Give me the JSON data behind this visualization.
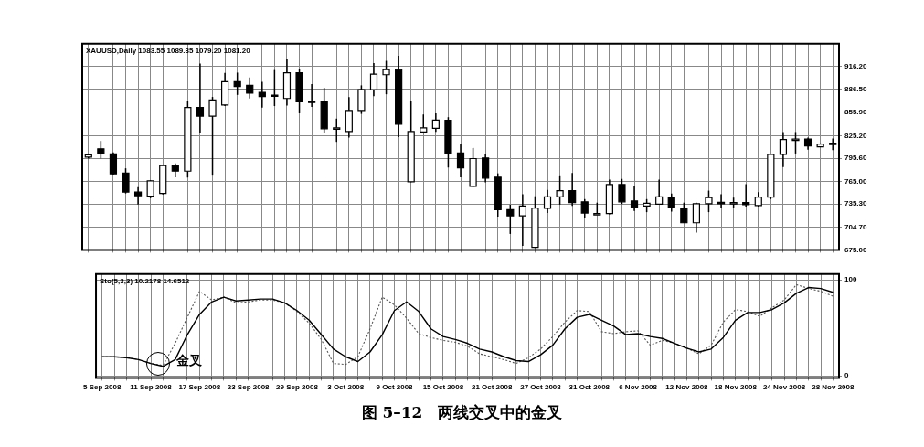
{
  "chart_data": [
    {
      "type": "candlestick",
      "title": "XAUUSD,Daily 1083.55 1089.35 1079.20 1081.20",
      "color": "#000000",
      "categories": [
        null,
        null,
        null,
        null,
        null,
        null,
        null,
        null,
        null,
        null,
        null,
        null,
        null,
        null,
        null,
        null,
        null,
        null,
        null,
        null,
        null,
        null,
        null,
        null,
        null,
        null,
        null,
        null,
        null,
        null,
        null,
        null,
        null,
        null,
        null,
        null,
        null,
        null,
        null,
        null,
        null,
        null,
        null,
        null,
        null,
        null,
        null,
        null,
        null,
        null,
        null,
        null,
        null,
        null,
        null,
        null,
        null,
        null,
        null,
        null,
        null
      ],
      "ohlc": [
        [
          797,
          801,
          795,
          800
        ],
        [
          807.9,
          818.2,
          795.1,
          801.3
        ],
        [
          801.3,
          803,
          774,
          774.9
        ],
        [
          776,
          782.2,
          749.2,
          751
        ],
        [
          751,
          757.6,
          734.5,
          746.2
        ],
        [
          745.5,
          766.5,
          743,
          765.7
        ],
        [
          749.2,
          787,
          748,
          785.9
        ],
        [
          785.9,
          788.8,
          770.5,
          778.5
        ],
        [
          778.5,
          870.3,
          770.1,
          862.2
        ],
        [
          862.2,
          919.8,
          828.8,
          850.8
        ],
        [
          850.8,
          876,
          773.8,
          872.1
        ],
        [
          865.5,
          907.7,
          864,
          896
        ],
        [
          896,
          908,
          878.7,
          889.8
        ],
        [
          891.2,
          901.5,
          874,
          880.9
        ],
        [
          882,
          896,
          861.9,
          876.5
        ],
        [
          878.5,
          911.4,
          864,
          877.5
        ],
        [
          874,
          925.3,
          864.8,
          907.7
        ],
        [
          907.7,
          913.2,
          854.5,
          869.6
        ],
        [
          870.5,
          893,
          863,
          869.5
        ],
        [
          870.3,
          887.9,
          828.1,
          834.3
        ],
        [
          835,
          847.5,
          817,
          835.5
        ],
        [
          830.7,
          875.8,
          822.6,
          858.2
        ],
        [
          858.2,
          891.2,
          853.8,
          885.7
        ],
        [
          885.7,
          920.6,
          876.9,
          905.9
        ],
        [
          905.2,
          923.5,
          879.5,
          911.8
        ],
        [
          911.8,
          930.1,
          823.3,
          840.2
        ],
        [
          764.6,
          870.3,
          764,
          830.7
        ],
        [
          829.9,
          853,
          829,
          835.4
        ],
        [
          834.7,
          854.5,
          830,
          845.7
        ],
        [
          845.3,
          849.4,
          783.3,
          801.7
        ],
        [
          802.4,
          814.1,
          770.5,
          782.9
        ],
        [
          758.4,
          809,
          757.7,
          795
        ],
        [
          795.8,
          801.3,
          763.9,
          769.4
        ],
        [
          770.5,
          775.6,
          718.7,
          727.9
        ],
        [
          727.9,
          734.5,
          696,
          719.8
        ],
        [
          719.8,
          748.1,
          680.2,
          732.7
        ],
        [
          678.4,
          745.5,
          677.6,
          730.1
        ],
        [
          729.7,
          753.9,
          723.5,
          744.8
        ],
        [
          744.8,
          773,
          734.5,
          752.9
        ],
        [
          752.9,
          776,
          732.7,
          737.1
        ],
        [
          738.2,
          741.8,
          716.9,
          723.5
        ],
        [
          722.8,
          737.1,
          722,
          722.8
        ],
        [
          722.8,
          767.5,
          721.7,
          760.9
        ],
        [
          760.9,
          768.3,
          735.2,
          738.2
        ],
        [
          739.3,
          759.1,
          726.1,
          730.8
        ],
        [
          732.7,
          741.8,
          724.6,
          736.3
        ],
        [
          735.2,
          767.5,
          735.2,
          744.8
        ],
        [
          744.4,
          749.2,
          725.3,
          730.8
        ],
        [
          730.1,
          737.1,
          710.6,
          710.6
        ],
        [
          710.6,
          737.1,
          697.8,
          735.6
        ],
        [
          735.6,
          752.9,
          724.6,
          743.7
        ],
        [
          737.5,
          748.1,
          729.7,
          737.1
        ],
        [
          737.1,
          743.7,
          730.8,
          737.3
        ],
        [
          737.1,
          761.3,
          731.9,
          734.5
        ],
        [
          733.4,
          751,
          731.9,
          744.4
        ],
        [
          744.4,
          800.6,
          741.8,
          800.6
        ],
        [
          800.6,
          829.9,
          784,
          820
        ],
        [
          820.5,
          829.9,
          801.7,
          820.7
        ],
        [
          820.7,
          822.6,
          806.8,
          811.6
        ],
        [
          810.5,
          815,
          810,
          814.1
        ],
        [
          815,
          821.5,
          806,
          815.2
        ]
      ],
      "ylim": [
        675,
        946
      ],
      "yticks": [
        {
          "value": 675,
          "label": "675.00"
        },
        {
          "value": 704.7,
          "label": "704.70"
        },
        {
          "value": 735.3,
          "label": "735.30"
        },
        {
          "value": 765,
          "label": "765.00"
        },
        {
          "value": 795.6,
          "label": "795.60"
        },
        {
          "value": 825.2,
          "label": "825.20"
        },
        {
          "value": 855.9,
          "label": "855.90"
        },
        {
          "value": 886.5,
          "label": "886.50"
        },
        {
          "value": 916.2,
          "label": "916.20"
        }
      ],
      "grid": true
    },
    {
      "type": "line",
      "title": "Sto(5,3,3) 10.2178 14.6512",
      "categories": [
        "5 Sep 2008",
        null,
        null,
        null,
        "11 Sep 2008",
        null,
        null,
        null,
        "17 Sep 2008",
        null,
        null,
        null,
        "23 Sep 2008",
        null,
        null,
        null,
        "29 Sep 2008",
        null,
        null,
        null,
        "3 Oct 2008",
        null,
        null,
        null,
        "9 Oct 2008",
        null,
        null,
        null,
        "15 Oct 2008",
        null,
        null,
        null,
        "21 Oct 2008",
        null,
        null,
        null,
        "27 Oct 2008",
        null,
        null,
        null,
        "31 Oct 2008",
        null,
        null,
        null,
        "6 Nov 2008",
        null,
        null,
        null,
        "12 Nov 2008",
        null,
        null,
        null,
        "18 Nov 2008",
        null,
        null,
        null,
        "24 Nov 2008",
        null,
        null,
        null,
        "28 Nov 2008"
      ],
      "series": [
        {
          "color": "#000000",
          "line_style": "solid",
          "values": [
            20,
            20,
            19,
            17,
            13,
            10,
            17,
            43,
            64,
            77,
            82,
            78,
            79,
            80,
            80,
            76,
            68,
            58,
            43,
            28,
            20,
            15,
            25,
            43,
            68,
            77,
            67,
            49,
            41,
            38,
            34,
            28,
            25,
            20,
            16,
            15,
            22,
            32,
            49,
            61,
            64,
            58,
            52,
            43,
            44,
            41,
            39,
            34,
            29,
            25,
            28,
            40,
            58,
            66,
            66,
            69,
            76,
            86,
            92,
            91,
            87
          ]
        },
        {
          "color": "#555555",
          "line_style": "dotted",
          "values": [
            20,
            20,
            19,
            17,
            13,
            11,
            34,
            61,
            88,
            79,
            82,
            76,
            77,
            79,
            79,
            76,
            67,
            55,
            38,
            13,
            12,
            20,
            49,
            82,
            74,
            60,
            44,
            40,
            37,
            35,
            31,
            23,
            20,
            17,
            13,
            19,
            28,
            41,
            56,
            68,
            67,
            46,
            44,
            46,
            47,
            32,
            37,
            34,
            29,
            23,
            32,
            56,
            69,
            67,
            62,
            71,
            79,
            95,
            91,
            88,
            83
          ]
        }
      ],
      "ylim": [
        -2,
        106
      ],
      "yticks": [
        0,
        100
      ],
      "grid": true,
      "marker": "none",
      "annotations": [
        {
          "text": "金叉",
          "x": "11 Sep 2008",
          "y": 13
        },
        "图 5–12　两线交叉中的金叉"
      ]
    }
  ]
}
